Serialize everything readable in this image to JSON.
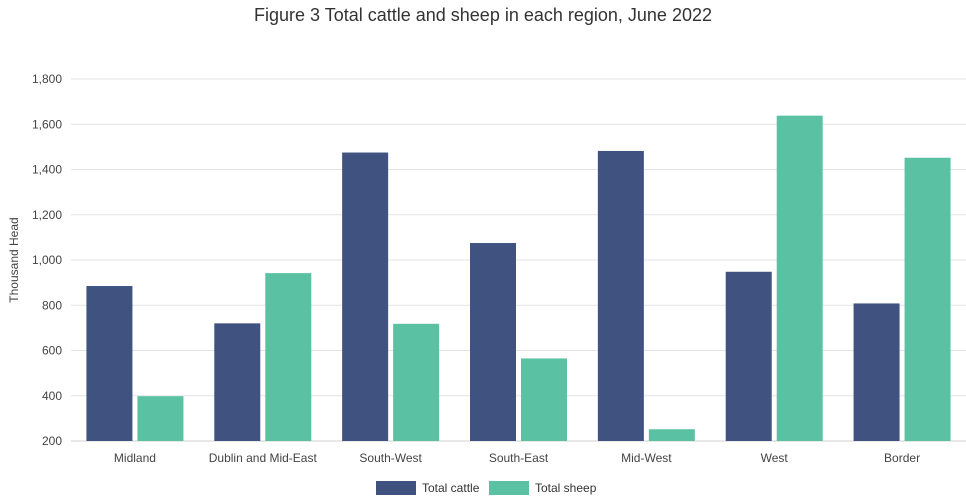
{
  "colors": {
    "cattle": "#3f5280",
    "sheep": "#5ac2a2",
    "grid": "#e3e3e3",
    "axis": "#d0d0d0"
  },
  "chart_data": {
    "type": "bar",
    "title": "Figure 3 Total cattle and sheep in each region, June 2022",
    "xlabel": "",
    "ylabel": "Thousand Head",
    "ylim": [
      200,
      1800
    ],
    "yticks": [
      200,
      400,
      600,
      800,
      1000,
      1200,
      1400,
      1600,
      1800
    ],
    "ytick_labels": [
      "200",
      "400",
      "600",
      "800",
      "1,000",
      "1,200",
      "1,400",
      "1,600",
      "1,800"
    ],
    "categories": [
      "Midland",
      "Dublin and Mid-East",
      "South-West",
      "South-East",
      "Mid-West",
      "West",
      "Border"
    ],
    "series": [
      {
        "name": "Total cattle",
        "values": [
          885,
          720,
          1475,
          1075,
          1482,
          948,
          808
        ]
      },
      {
        "name": "Total sheep",
        "values": [
          398,
          942,
          718,
          565,
          252,
          1638,
          1452
        ]
      }
    ],
    "grid": true,
    "legend_position": "bottom-center"
  }
}
